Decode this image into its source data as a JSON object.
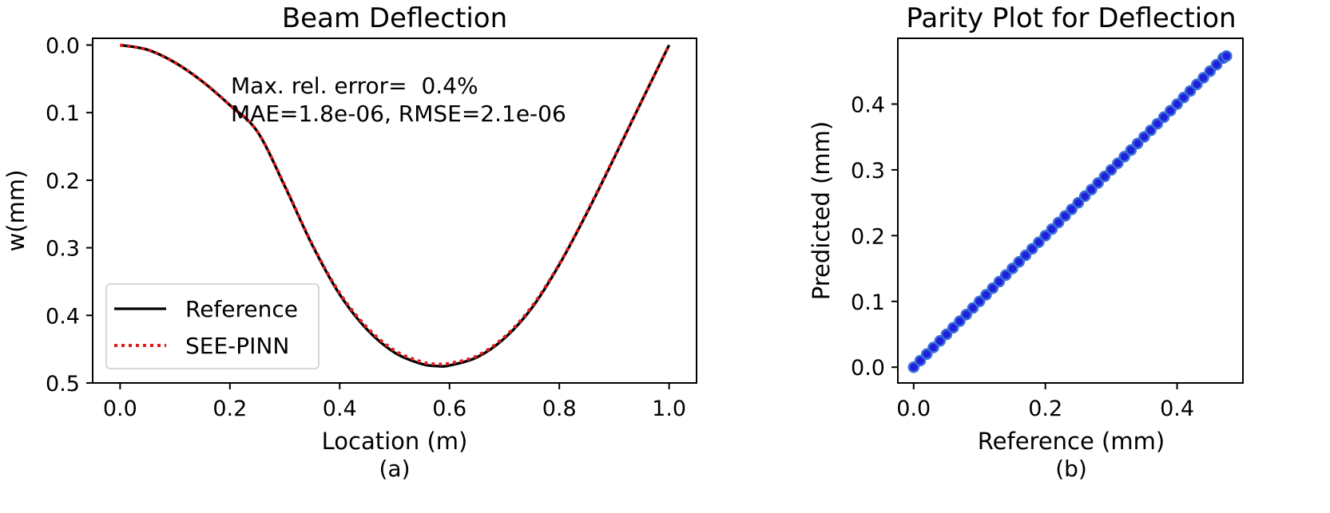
{
  "chart_data": [
    {
      "type": "line",
      "title": "Beam Deflection",
      "xlabel": "Location (m)",
      "ylabel": "w(mm)",
      "caption": "(a)",
      "xlim": [
        -0.05,
        1.05
      ],
      "ylim": [
        0.5,
        -0.01
      ],
      "y_inverted": true,
      "xticks": [
        "0.0",
        "0.2",
        "0.4",
        "0.6",
        "0.8",
        "1.0"
      ],
      "yticks": [
        "0.0",
        "0.1",
        "0.2",
        "0.3",
        "0.4",
        "0.5"
      ],
      "x": [
        0.0,
        0.05,
        0.1,
        0.15,
        0.2,
        0.25,
        0.3,
        0.35,
        0.4,
        0.45,
        0.5,
        0.55,
        0.578,
        0.6,
        0.65,
        0.7,
        0.75,
        0.8,
        0.85,
        0.9,
        0.95,
        1.0
      ],
      "series": [
        {
          "name": "Reference",
          "color": "#000000",
          "style": "solid",
          "values": [
            0.0,
            0.007,
            0.026,
            0.054,
            0.089,
            0.128,
            0.209,
            0.296,
            0.369,
            0.421,
            0.455,
            0.472,
            0.475,
            0.474,
            0.462,
            0.434,
            0.389,
            0.325,
            0.249,
            0.167,
            0.083,
            0.0
          ]
        },
        {
          "name": "SEE-PINN",
          "color": "#e41a1c",
          "style": "dotted",
          "values": [
            0.0,
            0.007,
            0.026,
            0.054,
            0.089,
            0.128,
            0.208,
            0.295,
            0.367,
            0.418,
            0.452,
            0.469,
            0.472,
            0.471,
            0.46,
            0.432,
            0.387,
            0.324,
            0.248,
            0.166,
            0.083,
            0.0
          ]
        }
      ],
      "annotations": [
        "Max. rel. error=  0.4%",
        "MAE=1.8e-06, RMSE=2.1e-06"
      ],
      "legend": "lower-left",
      "grid": false
    },
    {
      "type": "scatter",
      "title": "Parity Plot for Deflection",
      "xlabel": "Reference (mm)",
      "ylabel": "Predicted (mm)",
      "caption": "(b)",
      "xlim": [
        -0.024,
        0.5
      ],
      "ylim": [
        -0.024,
        0.5
      ],
      "xticks": [
        "0.0",
        "0.2",
        "0.4"
      ],
      "yticks": [
        "0.0",
        "0.1",
        "0.2",
        "0.3",
        "0.4"
      ],
      "marker_color": "#1f1fdd",
      "edge_color": "#3a6fd8",
      "points_x": [
        0.0,
        0.01,
        0.02,
        0.03,
        0.04,
        0.05,
        0.06,
        0.07,
        0.08,
        0.09,
        0.1,
        0.11,
        0.12,
        0.13,
        0.14,
        0.15,
        0.16,
        0.17,
        0.18,
        0.19,
        0.2,
        0.21,
        0.22,
        0.23,
        0.24,
        0.25,
        0.26,
        0.27,
        0.28,
        0.29,
        0.3,
        0.31,
        0.32,
        0.33,
        0.34,
        0.35,
        0.36,
        0.37,
        0.38,
        0.39,
        0.4,
        0.41,
        0.42,
        0.43,
        0.44,
        0.45,
        0.46,
        0.47,
        0.475
      ],
      "points_y": [
        0.0,
        0.01,
        0.02,
        0.03,
        0.04,
        0.05,
        0.06,
        0.07,
        0.08,
        0.09,
        0.1,
        0.11,
        0.12,
        0.13,
        0.14,
        0.15,
        0.16,
        0.17,
        0.18,
        0.19,
        0.2,
        0.21,
        0.22,
        0.23,
        0.24,
        0.25,
        0.26,
        0.27,
        0.28,
        0.29,
        0.3,
        0.31,
        0.32,
        0.33,
        0.34,
        0.35,
        0.36,
        0.37,
        0.38,
        0.39,
        0.4,
        0.41,
        0.42,
        0.43,
        0.44,
        0.45,
        0.46,
        0.47,
        0.473
      ],
      "grid": false
    }
  ]
}
